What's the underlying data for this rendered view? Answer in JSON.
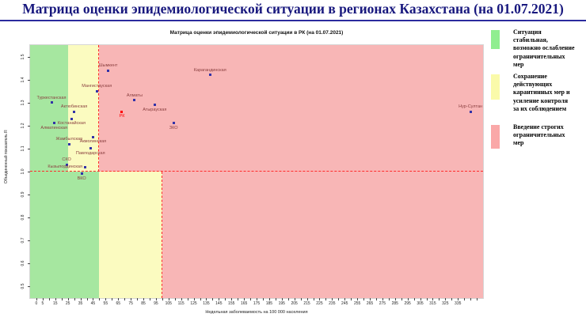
{
  "page": {
    "title": "Матрица оценки эпидемиологической ситуации в регионах Казахстана (на 01.07.2021)"
  },
  "chart_data": {
    "type": "scatter",
    "title": "Матрица оценки эпидемиологической ситуации в РК (на 01.07.2021)",
    "xlabel": "Недельная заболеваемость на 100 000 населения",
    "ylabel": "Объединенный показатель R",
    "xlim": [
      -5,
      355
    ],
    "ylim": [
      0.45,
      1.55
    ],
    "grid": false,
    "x_ticks": [
      0,
      5,
      15,
      25,
      35,
      45,
      55,
      65,
      75,
      85,
      95,
      105,
      115,
      125,
      135,
      145,
      155,
      165,
      175,
      185,
      195,
      205,
      215,
      225,
      235,
      245,
      255,
      265,
      275,
      285,
      295,
      305,
      315,
      325,
      335
    ],
    "y_ticks": [
      0.5,
      0.6,
      0.7,
      0.8,
      0.9,
      1.0,
      1.1,
      1.2,
      1.3,
      1.4,
      1.5
    ],
    "point_color": "#3232a8",
    "label_color": "#8b4040",
    "line_color": "#ff2a2a",
    "zones": [
      {
        "name": "green-upper",
        "x0": -5,
        "x1": 25,
        "y0": 1.0,
        "y1": 1.55,
        "color": "#a6e7a0"
      },
      {
        "name": "yellow-upper",
        "x0": 25,
        "x1": 50,
        "y0": 1.0,
        "y1": 1.55,
        "color": "#fbfbc0"
      },
      {
        "name": "pink-upper",
        "x0": 50,
        "x1": 355,
        "y0": 1.0,
        "y1": 1.55,
        "color": "#f8b6b6"
      },
      {
        "name": "green-lower",
        "x0": -5,
        "x1": 50,
        "y0": 0.45,
        "y1": 1.0,
        "color": "#a6e7a0"
      },
      {
        "name": "yellow-lower",
        "x0": 50,
        "x1": 100,
        "y0": 0.45,
        "y1": 1.0,
        "color": "#fbfbc0"
      },
      {
        "name": "pink-lower",
        "x0": 100,
        "x1": 355,
        "y0": 0.45,
        "y1": 1.0,
        "color": "#f8b6b6"
      }
    ],
    "threshold_lines": [
      {
        "name": "r-equals-1",
        "orient": "h",
        "at": 1.0,
        "from": -5,
        "to": 355
      },
      {
        "name": "incidence-50-upper",
        "orient": "v",
        "at": 50,
        "from": 1.0,
        "to": 1.55
      },
      {
        "name": "incidence-100-lower",
        "orient": "v",
        "at": 100,
        "from": 0.45,
        "to": 1.0
      }
    ],
    "points": [
      {
        "name": "Шымкент",
        "x": 57,
        "y": 1.44,
        "label_pos": "above"
      },
      {
        "name": "Карагандинская",
        "x": 138,
        "y": 1.42,
        "label_pos": "above"
      },
      {
        "name": "Мангистауская",
        "x": 48,
        "y": 1.35,
        "label_pos": "above"
      },
      {
        "name": "Алматы",
        "x": 78,
        "y": 1.31,
        "label_pos": "above"
      },
      {
        "name": "Туркестанская",
        "x": 12,
        "y": 1.3,
        "label_pos": "above"
      },
      {
        "name": "Атырауская",
        "x": 94,
        "y": 1.29,
        "label_pos": "below"
      },
      {
        "name": "Актюбинская",
        "x": 30,
        "y": 1.26,
        "label_pos": "above"
      },
      {
        "name": "РК",
        "x": 68,
        "y": 1.26,
        "label_pos": "below",
        "color": "#ff0000"
      },
      {
        "name": "Нур-Султан",
        "x": 345,
        "y": 1.26,
        "label_pos": "above"
      },
      {
        "name": "Костанайская",
        "x": 28,
        "y": 1.23,
        "label_pos": "below"
      },
      {
        "name": "Алматинская",
        "x": 14,
        "y": 1.21,
        "label_pos": "below"
      },
      {
        "name": "ЗКО",
        "x": 109,
        "y": 1.21,
        "label_pos": "below"
      },
      {
        "name": "Акмолинская",
        "x": 45,
        "y": 1.15,
        "label_pos": "below"
      },
      {
        "name": "Жамбылская",
        "x": 26,
        "y": 1.12,
        "label_pos": "above"
      },
      {
        "name": "Павлодарская",
        "x": 43,
        "y": 1.1,
        "label_pos": "below"
      },
      {
        "name": "СКО",
        "x": 24,
        "y": 1.03,
        "label_pos": "above"
      },
      {
        "name": "Кызылординская",
        "x": 39,
        "y": 1.02,
        "label_pos": "left"
      },
      {
        "name": "ВКО",
        "x": 36,
        "y": 0.99,
        "label_pos": "below"
      }
    ]
  },
  "legend": {
    "items": [
      {
        "name": "stable",
        "color": "#90ee90",
        "lines": [
          "Ситуация",
          "стабильная,",
          "возможно ослабление",
          "ограничительных",
          "мер"
        ]
      },
      {
        "name": "keep-measures",
        "color": "#fafaaa",
        "lines": [
          "Сохранение",
          "действующих",
          "карантинных мер и",
          "усиление контроля",
          "за их соблюдением"
        ]
      },
      {
        "name": "strict-measures",
        "color": "#faa8a8",
        "lines": [
          "Введение строгих",
          "ограничительных",
          "мер"
        ]
      }
    ]
  }
}
